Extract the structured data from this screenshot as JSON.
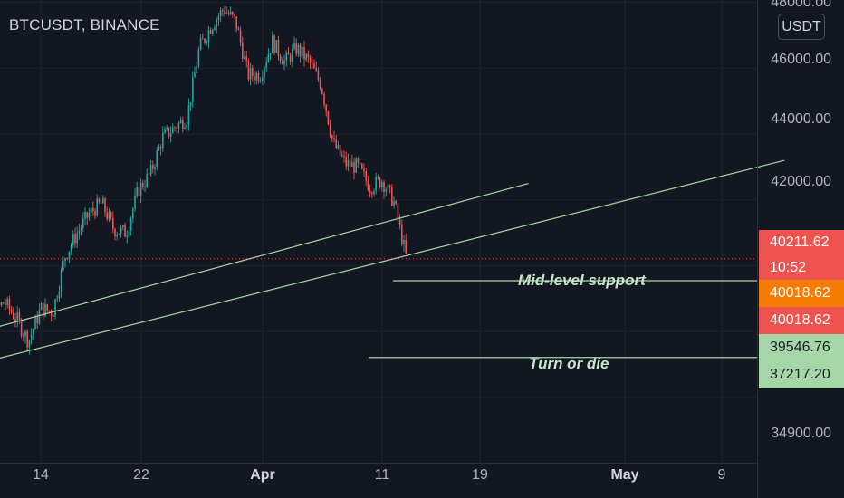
{
  "symbol": "BTCUSDT, BINANCE",
  "currency_unit": "USDT",
  "colors": {
    "background": "#131722",
    "up": "#26a69a",
    "down": "#ef5350",
    "trendline": "#a5d6a7",
    "current_price_line": "#ef5350"
  },
  "chart_data": {
    "type": "candlestick",
    "title": "",
    "price_axis": {
      "ticks": [
        "48000.00",
        "46000.00",
        "44000.00",
        "42000.00",
        "34900.00"
      ]
    },
    "time_axis": {
      "ticks": [
        "14",
        "22",
        "Apr",
        "11",
        "19",
        "May",
        "9"
      ],
      "bold_ticks": [
        "Apr",
        "May"
      ]
    },
    "price_path": [
      [
        "2022-03-08",
        39200
      ],
      [
        "2022-03-09",
        38800
      ],
      [
        "2022-03-10",
        38500
      ],
      [
        "2022-03-11",
        38900
      ],
      [
        "2022-03-12",
        38400
      ],
      [
        "2022-03-13",
        37700
      ],
      [
        "2022-03-14",
        38700
      ],
      [
        "2022-03-15",
        38600
      ],
      [
        "2022-03-16",
        40300
      ],
      [
        "2022-03-17",
        41000
      ],
      [
        "2022-03-18",
        41600
      ],
      [
        "2022-03-19",
        41900
      ],
      [
        "2022-03-20",
        41100
      ],
      [
        "2022-03-21",
        41000
      ],
      [
        "2022-03-22",
        42300
      ],
      [
        "2022-03-23",
        42800
      ],
      [
        "2022-03-24",
        43900
      ],
      [
        "2022-03-25",
        44200
      ],
      [
        "2022-03-26",
        44500
      ],
      [
        "2022-03-27",
        46600
      ],
      [
        "2022-03-28",
        47300
      ],
      [
        "2022-03-29",
        47800
      ],
      [
        "2022-03-30",
        47400
      ],
      [
        "2022-03-31",
        45800
      ],
      [
        "2022-04-01",
        45800
      ],
      [
        "2022-04-02",
        46800
      ],
      [
        "2022-04-03",
        46200
      ],
      [
        "2022-04-04",
        46600
      ],
      [
        "2022-04-05",
        46200
      ],
      [
        "2022-04-06",
        45500
      ],
      [
        "2022-04-07",
        43700
      ],
      [
        "2022-04-08",
        43100
      ],
      [
        "2022-04-09",
        43000
      ],
      [
        "2022-04-10",
        42400
      ],
      [
        "2022-04-11",
        42600
      ],
      [
        "2022-04-12",
        41900
      ],
      [
        "2022-04-13",
        40200
      ]
    ],
    "last_price": 40211.62,
    "price_tags": [
      {
        "label": "40211.62",
        "color": "red"
      },
      {
        "label": "10:52",
        "color": "red"
      },
      {
        "label": "40018.62",
        "color": "orange"
      },
      {
        "label": "40018.62",
        "color": "red"
      },
      {
        "label": "39546.76",
        "color": "green"
      },
      {
        "label": "37217.20",
        "color": "green"
      }
    ],
    "horizontal_levels": [
      {
        "value": 39546.76,
        "label": "Mid-level support"
      },
      {
        "value": 37217.2,
        "label": "Turn or die"
      }
    ],
    "trendlines": [
      {
        "from": [
          "2022-03-01",
          37200
        ],
        "to": [
          "2022-04-23",
          42500
        ]
      },
      {
        "from": [
          "2022-03-01",
          36300
        ],
        "to": [
          "2022-05-14",
          43200
        ]
      }
    ]
  }
}
